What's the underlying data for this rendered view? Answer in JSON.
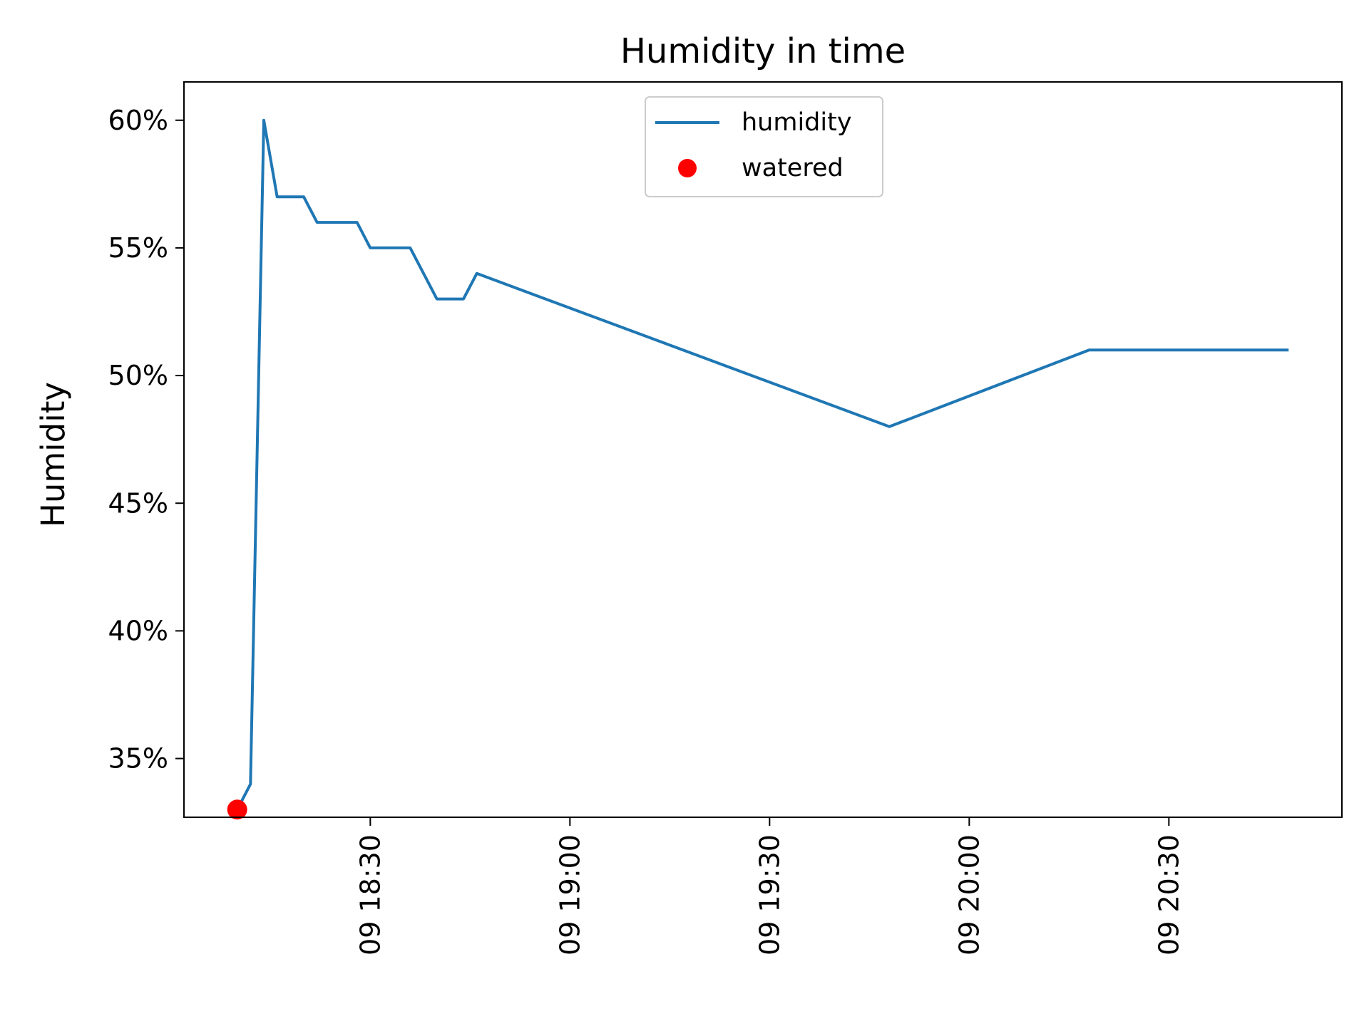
{
  "chart_data": {
    "type": "line",
    "title": "Humidity in time",
    "xlabel": "",
    "ylabel": "Humidity",
    "x_ticks": [
      "09 18:30",
      "09 19:00",
      "09 19:30",
      "09 20:00",
      "09 20:30"
    ],
    "y_ticks": [
      "35%",
      "40%",
      "45%",
      "50%",
      "55%",
      "60%"
    ],
    "ylim": [
      32.7,
      61.5
    ],
    "xlim": [
      "09 18:02",
      "09 20:56"
    ],
    "grid": false,
    "legend_position": "top-center",
    "series": [
      {
        "name": "humidity",
        "kind": "line",
        "color": "#1f77b4",
        "points": [
          {
            "t": "09 18:10",
            "y": 33
          },
          {
            "t": "09 18:12",
            "y": 34
          },
          {
            "t": "09 18:14",
            "y": 60
          },
          {
            "t": "09 18:16",
            "y": 57
          },
          {
            "t": "09 18:20",
            "y": 57
          },
          {
            "t": "09 18:22",
            "y": 56
          },
          {
            "t": "09 18:28",
            "y": 56
          },
          {
            "t": "09 18:30",
            "y": 55
          },
          {
            "t": "09 18:36",
            "y": 55
          },
          {
            "t": "09 18:40",
            "y": 53
          },
          {
            "t": "09 18:44",
            "y": 53
          },
          {
            "t": "09 18:46",
            "y": 54
          },
          {
            "t": "09 19:48",
            "y": 48
          },
          {
            "t": "09 20:18",
            "y": 51
          },
          {
            "t": "09 20:48",
            "y": 51
          }
        ]
      },
      {
        "name": "watered",
        "kind": "scatter",
        "color": "#ff0000",
        "points": [
          {
            "t": "09 18:10",
            "y": 33
          }
        ]
      }
    ]
  }
}
